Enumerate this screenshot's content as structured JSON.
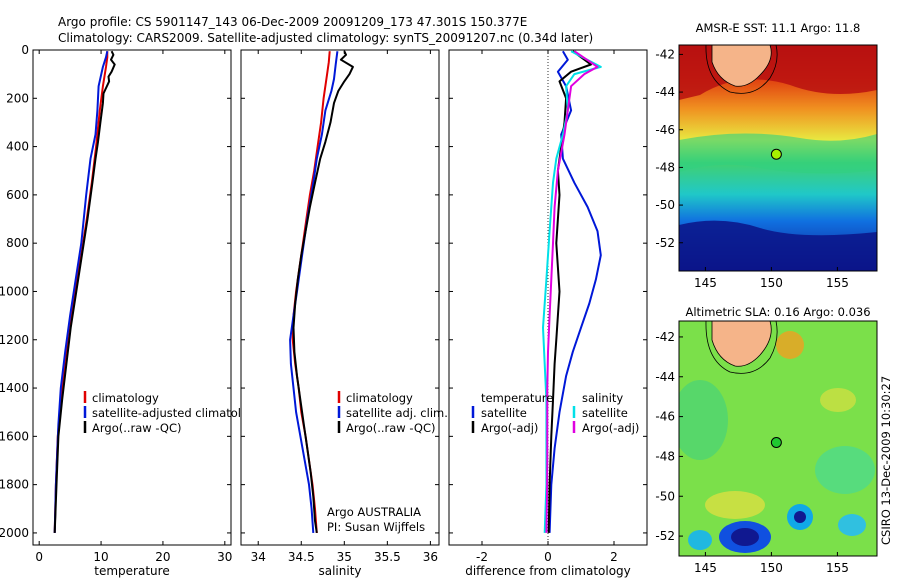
{
  "header": {
    "line1": "Argo profile: CS 5901147_143 06-Dec-2009 20091209_173 47.301S 150.377E",
    "line2": "Climatology: CARS2009. Satellite-adjusted climatology: synTS_20091207.nc (0.34d later)"
  },
  "colors": {
    "climatology": "#e00000",
    "satellite": "#0018d8",
    "argo": "#000000",
    "sat_salt": "#00e0e8",
    "argo_salt": "#e000e0"
  },
  "chart_data": [
    {
      "type": "line",
      "id": "temperature",
      "xlabel": "temperature",
      "xlim": [
        -1,
        31
      ],
      "ylim": [
        0,
        2050
      ],
      "y_reversed": true,
      "xticks": [
        0,
        10,
        20,
        30
      ],
      "yticks": [
        0,
        200,
        400,
        600,
        800,
        1000,
        1200,
        1400,
        1600,
        1800,
        2000
      ],
      "legend": [
        "climatology",
        "satellite-adjusted climatology",
        "Argo(..raw -QC)"
      ],
      "legend_placement": "middle-right",
      "series": [
        {
          "name": "climatology",
          "color_key": "climatology",
          "points": [
            [
              11.0,
              5
            ],
            [
              11.0,
              30
            ],
            [
              10.8,
              70
            ],
            [
              10.3,
              150
            ],
            [
              9.8,
              250
            ],
            [
              9.2,
              400
            ],
            [
              8.5,
              550
            ],
            [
              7.7,
              700
            ],
            [
              6.8,
              850
            ],
            [
              5.8,
              1000
            ],
            [
              4.8,
              1150
            ],
            [
              4.1,
              1300
            ],
            [
              3.5,
              1450
            ],
            [
              3.0,
              1600
            ],
            [
              2.7,
              1800
            ],
            [
              2.5,
              2000
            ]
          ]
        },
        {
          "name": "satellite-adjusted climatology",
          "color_key": "satellite",
          "points": [
            [
              11.0,
              5
            ],
            [
              10.8,
              30
            ],
            [
              10.3,
              70
            ],
            [
              9.6,
              150
            ],
            [
              9.4,
              250
            ],
            [
              9.1,
              350
            ],
            [
              8.3,
              450
            ],
            [
              7.6,
              600
            ],
            [
              6.8,
              800
            ],
            [
              5.9,
              950
            ],
            [
              5.0,
              1100
            ],
            [
              4.2,
              1250
            ],
            [
              3.5,
              1400
            ],
            [
              3.1,
              1550
            ],
            [
              2.7,
              1800
            ],
            [
              2.5,
              2000
            ]
          ]
        },
        {
          "name": "Argo(..raw -QC)",
          "color_key": "argo",
          "points": [
            [
              11.7,
              5
            ],
            [
              12.0,
              20
            ],
            [
              11.6,
              40
            ],
            [
              12.2,
              60
            ],
            [
              11.7,
              90
            ],
            [
              11.2,
              110
            ],
            [
              11.3,
              130
            ],
            [
              10.4,
              180
            ],
            [
              10.3,
              220
            ],
            [
              9.9,
              300
            ],
            [
              9.5,
              380
            ],
            [
              9.1,
              450
            ],
            [
              8.6,
              550
            ],
            [
              7.8,
              700
            ],
            [
              6.9,
              850
            ],
            [
              6.0,
              1000
            ],
            [
              5.1,
              1150
            ],
            [
              4.4,
              1300
            ],
            [
              3.7,
              1450
            ],
            [
              3.1,
              1600
            ],
            [
              2.8,
              1800
            ],
            [
              2.5,
              2000
            ]
          ]
        }
      ]
    },
    {
      "type": "line",
      "id": "salinity",
      "xlabel": "salinity",
      "xlim": [
        33.8,
        36.1
      ],
      "ylim": [
        0,
        2050
      ],
      "y_reversed": true,
      "xticks": [
        34,
        34.5,
        35,
        35.5,
        36
      ],
      "legend": [
        "climatology",
        "satellite adj. clim.",
        "Argo(..raw -QC)"
      ],
      "legend_placement": "middle-right",
      "annotation": [
        "Argo AUSTRALIA",
        "PI: Susan Wijffels"
      ],
      "series": [
        {
          "name": "climatology",
          "color_key": "climatology",
          "points": [
            [
              34.83,
              5
            ],
            [
              34.82,
              50
            ],
            [
              34.8,
              100
            ],
            [
              34.76,
              200
            ],
            [
              34.73,
              300
            ],
            [
              34.69,
              400
            ],
            [
              34.65,
              500
            ],
            [
              34.6,
              600
            ],
            [
              34.56,
              700
            ],
            [
              34.52,
              800
            ],
            [
              34.48,
              900
            ],
            [
              34.44,
              1000
            ],
            [
              34.41,
              1100
            ],
            [
              34.4,
              1200
            ],
            [
              34.43,
              1300
            ],
            [
              34.47,
              1400
            ],
            [
              34.5,
              1500
            ],
            [
              34.55,
              1600
            ],
            [
              34.59,
              1700
            ],
            [
              34.63,
              1800
            ],
            [
              34.66,
              1900
            ],
            [
              34.68,
              2000
            ]
          ]
        },
        {
          "name": "satellite adj. clim.",
          "color_key": "satellite",
          "points": [
            [
              34.92,
              5
            ],
            [
              34.9,
              60
            ],
            [
              34.88,
              120
            ],
            [
              34.85,
              170
            ],
            [
              34.78,
              250
            ],
            [
              34.74,
              350
            ],
            [
              34.68,
              450
            ],
            [
              34.64,
              550
            ],
            [
              34.57,
              700
            ],
            [
              34.51,
              850
            ],
            [
              34.45,
              1000
            ],
            [
              34.41,
              1100
            ],
            [
              34.37,
              1200
            ],
            [
              34.38,
              1300
            ],
            [
              34.41,
              1400
            ],
            [
              34.44,
              1500
            ],
            [
              34.49,
              1600
            ],
            [
              34.54,
              1700
            ],
            [
              34.59,
              1800
            ],
            [
              34.62,
              1900
            ],
            [
              34.64,
              2000
            ]
          ]
        },
        {
          "name": "Argo(..raw -QC)",
          "color_key": "argo",
          "points": [
            [
              35.0,
              5
            ],
            [
              35.02,
              20
            ],
            [
              34.96,
              40
            ],
            [
              35.1,
              70
            ],
            [
              35.06,
              100
            ],
            [
              35.0,
              130
            ],
            [
              34.93,
              170
            ],
            [
              34.88,
              220
            ],
            [
              34.84,
              300
            ],
            [
              34.78,
              380
            ],
            [
              34.72,
              450
            ],
            [
              34.66,
              550
            ],
            [
              34.6,
              650
            ],
            [
              34.55,
              750
            ],
            [
              34.5,
              850
            ],
            [
              34.46,
              950
            ],
            [
              34.43,
              1050
            ],
            [
              34.41,
              1150
            ],
            [
              34.42,
              1250
            ],
            [
              34.45,
              1350
            ],
            [
              34.49,
              1450
            ],
            [
              34.53,
              1550
            ],
            [
              34.57,
              1650
            ],
            [
              34.61,
              1750
            ],
            [
              34.64,
              1850
            ],
            [
              34.66,
              1950
            ],
            [
              34.68,
              2000
            ]
          ]
        }
      ]
    },
    {
      "type": "line",
      "id": "difference",
      "xlabel": "difference from climatology",
      "xlim": [
        -3,
        3
      ],
      "ylim": [
        0,
        2050
      ],
      "y_reversed": true,
      "xticks": [
        -2,
        0,
        2
      ],
      "legend_left_title": "temperature",
      "legend_left": [
        "satellite",
        "Argo(-adj)"
      ],
      "legend_right_title": "salinity",
      "legend_right": [
        "satellite",
        "Argo(-adj)"
      ],
      "series": [
        {
          "name": "temperature satellite",
          "color_key": "satellite",
          "points": [
            [
              0.45,
              5
            ],
            [
              0.6,
              40
            ],
            [
              0.3,
              90
            ],
            [
              0.55,
              150
            ],
            [
              0.7,
              250
            ],
            [
              0.4,
              350
            ],
            [
              0.45,
              450
            ],
            [
              0.8,
              550
            ],
            [
              1.2,
              650
            ],
            [
              1.5,
              750
            ],
            [
              1.6,
              850
            ],
            [
              1.45,
              950
            ],
            [
              1.25,
              1050
            ],
            [
              1.0,
              1150
            ],
            [
              0.75,
              1250
            ],
            [
              0.55,
              1350
            ],
            [
              0.35,
              1500
            ],
            [
              0.2,
              1650
            ],
            [
              0.1,
              1800
            ],
            [
              0.05,
              2000
            ]
          ]
        },
        {
          "name": "temperature Argo(-adj)",
          "color_key": "argo",
          "points": [
            [
              0.75,
              5
            ],
            [
              1.3,
              60
            ],
            [
              0.7,
              90
            ],
            [
              0.35,
              130
            ],
            [
              0.55,
              200
            ],
            [
              0.5,
              300
            ],
            [
              0.4,
              400
            ],
            [
              0.3,
              500
            ],
            [
              0.35,
              600
            ],
            [
              0.3,
              700
            ],
            [
              0.25,
              800
            ],
            [
              0.3,
              900
            ],
            [
              0.35,
              1000
            ],
            [
              0.3,
              1100
            ],
            [
              0.25,
              1200
            ],
            [
              0.2,
              1300
            ],
            [
              0.15,
              1450
            ],
            [
              0.1,
              1600
            ],
            [
              0.05,
              1800
            ],
            [
              0.02,
              2000
            ]
          ]
        },
        {
          "name": "salinity satellite",
          "color_key": "sat_salt",
          "points": [
            [
              0.7,
              5
            ],
            [
              1.6,
              70
            ],
            [
              0.8,
              100
            ],
            [
              0.55,
              150
            ],
            [
              0.6,
              250
            ],
            [
              0.45,
              350
            ],
            [
              0.25,
              450
            ],
            [
              0.15,
              550
            ],
            [
              0.1,
              650
            ],
            [
              0.05,
              750
            ],
            [
              0.0,
              850
            ],
            [
              -0.05,
              950
            ],
            [
              -0.1,
              1050
            ],
            [
              -0.15,
              1150
            ],
            [
              -0.1,
              1300
            ],
            [
              -0.05,
              1450
            ],
            [
              -0.05,
              1600
            ],
            [
              -0.05,
              1800
            ],
            [
              -0.1,
              2000
            ]
          ]
        },
        {
          "name": "salinity Argo(-adj)",
          "color_key": "argo_salt",
          "points": [
            [
              0.8,
              5
            ],
            [
              1.5,
              70
            ],
            [
              1.1,
              100
            ],
            [
              0.7,
              150
            ],
            [
              0.6,
              250
            ],
            [
              0.5,
              350
            ],
            [
              0.3,
              500
            ],
            [
              0.2,
              650
            ],
            [
              0.15,
              800
            ],
            [
              0.1,
              950
            ],
            [
              0.05,
              1100
            ],
            [
              0.0,
              1250
            ],
            [
              -0.02,
              1400
            ],
            [
              -0.02,
              1550
            ],
            [
              -0.02,
              1700
            ],
            [
              -0.03,
              1850
            ],
            [
              -0.05,
              2000
            ]
          ]
        }
      ]
    }
  ],
  "maps": [
    {
      "title": "AMSR-E SST: 11.1 Argo: 11.8",
      "xlim": [
        143,
        158
      ],
      "ylim": [
        -53.5,
        -41.5
      ],
      "xticks": [
        145,
        150,
        155
      ],
      "yticks": [
        -42,
        -44,
        -46,
        -48,
        -50,
        -52
      ],
      "marker": [
        150.377,
        -47.301
      ],
      "marker_color": "#a8f000"
    },
    {
      "title": "Altimetric SLA: 0.16 Argo: 0.036",
      "xlim": [
        143,
        158
      ],
      "ylim": [
        -53,
        -41.2
      ],
      "xticks": [
        145,
        150,
        155
      ],
      "yticks": [
        -42,
        -44,
        -46,
        -48,
        -50,
        -52
      ],
      "marker": [
        150.377,
        -47.301
      ],
      "marker_color": "#20c830"
    }
  ],
  "credit": "CSIRO 13-Dec-2009 10:30:27"
}
